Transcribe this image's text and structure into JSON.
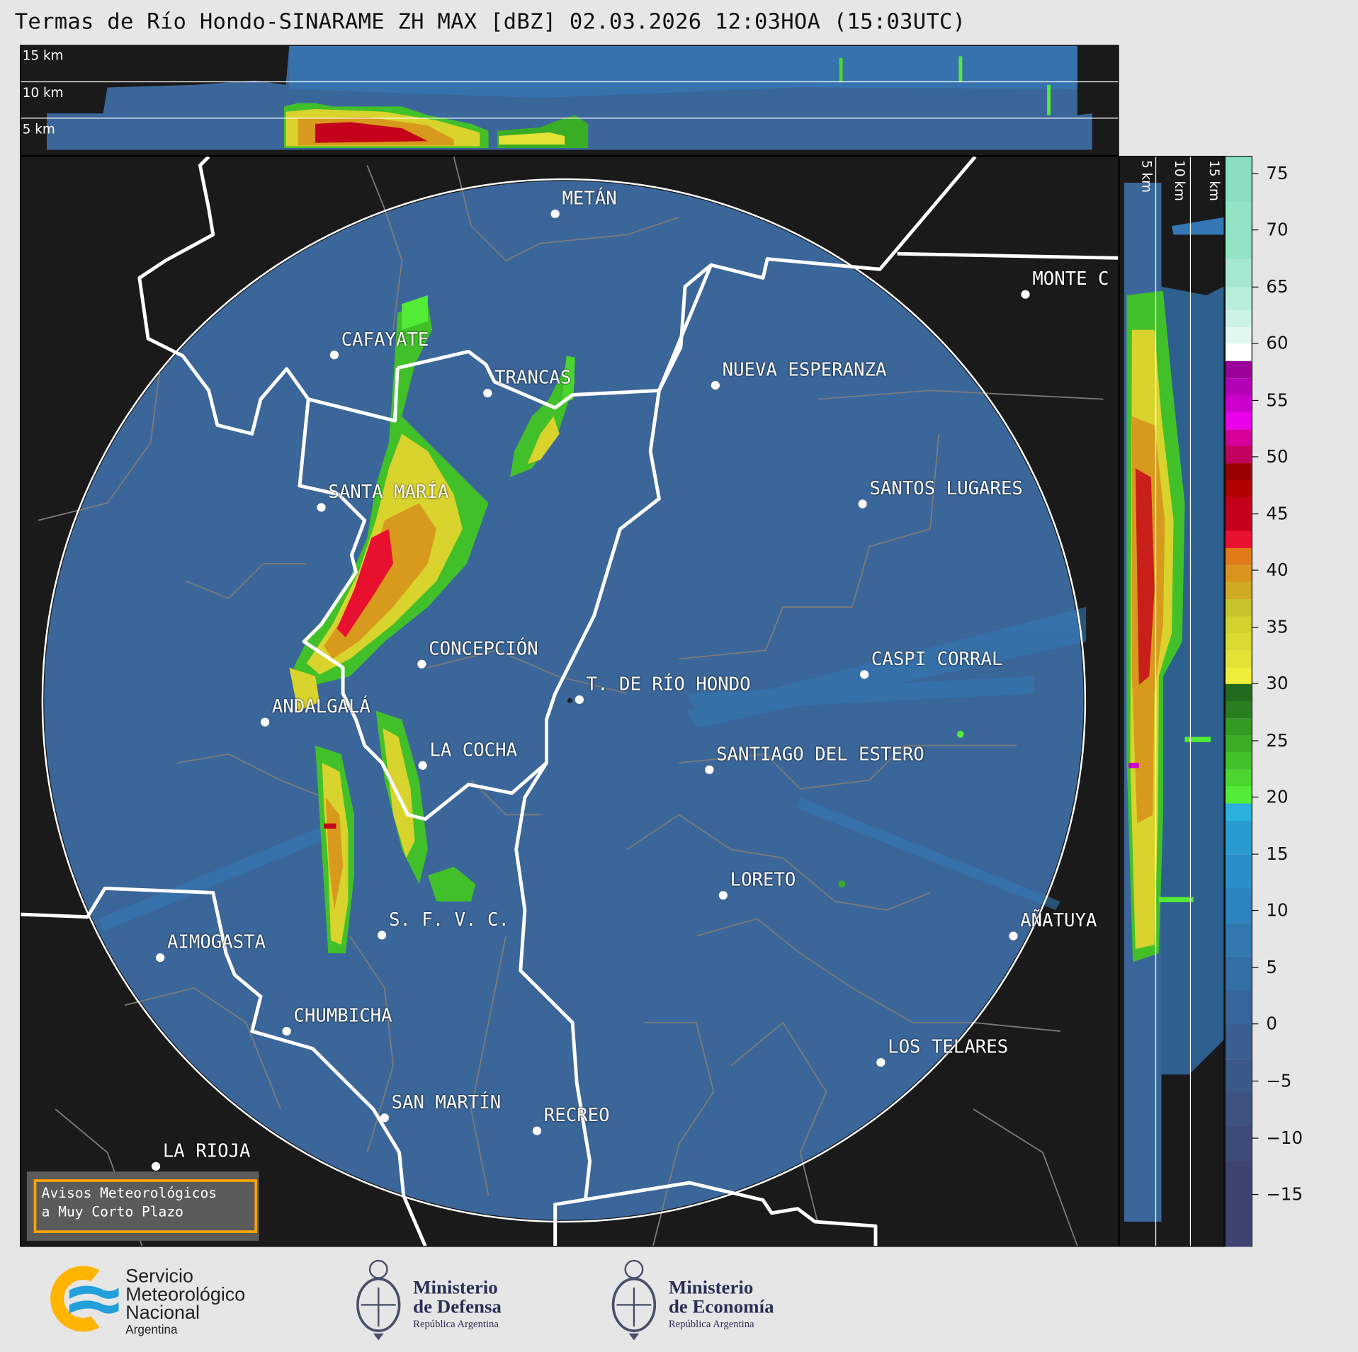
{
  "title": "Termas de Río Hondo-SINARAME ZH MAX [dBZ] 02.03.2026 12:03HOA (15:03UTC)",
  "top_panel": {
    "height_labels": [
      "15 km",
      "10 km",
      "5 km"
    ]
  },
  "side_panel": {
    "height_labels": [
      "5 km",
      "10 km",
      "15 km"
    ]
  },
  "colorbar": {
    "unit": "dBZ",
    "range": [
      -19.5,
      76.5
    ],
    "ticks": [
      75,
      70,
      65,
      60,
      55,
      50,
      45,
      40,
      35,
      30,
      25,
      20,
      15,
      10,
      5,
      0,
      -5,
      -10,
      -15
    ],
    "tick_labels": [
      "75",
      "70",
      "65",
      "60",
      "55",
      "50",
      "45",
      "40",
      "35",
      "30",
      "25",
      "20",
      "15",
      "10",
      "5",
      "0",
      "−5",
      "−10",
      "−15"
    ],
    "bands": [
      [
        72.5,
        76.5,
        "#88dfbf"
      ],
      [
        67.5,
        72.5,
        "#93e3c5"
      ],
      [
        65,
        67.5,
        "#a6e8cf"
      ],
      [
        63,
        65,
        "#b8eedb"
      ],
      [
        61.5,
        63,
        "#cbf2e4"
      ],
      [
        60,
        61.5,
        "#e0f7ef"
      ],
      [
        58.5,
        60,
        "#ffffff"
      ],
      [
        57,
        58.5,
        "#9a009a"
      ],
      [
        55.5,
        57,
        "#b400b4"
      ],
      [
        54,
        55.5,
        "#cc00cc"
      ],
      [
        52.5,
        54,
        "#ea00ea"
      ],
      [
        51,
        52.5,
        "#d40098"
      ],
      [
        49.5,
        51,
        "#c2005e"
      ],
      [
        48,
        49.5,
        "#990000"
      ],
      [
        46.5,
        48,
        "#b00000"
      ],
      [
        43.5,
        46.5,
        "#c4001a"
      ],
      [
        42,
        43.5,
        "#ea1030"
      ],
      [
        40.5,
        42,
        "#e07c18"
      ],
      [
        39,
        40.5,
        "#d8941c"
      ],
      [
        37.5,
        39,
        "#d0aa20"
      ],
      [
        36,
        37.5,
        "#c5c42a"
      ],
      [
        34.5,
        36,
        "#d2d22e"
      ],
      [
        33,
        34.5,
        "#d9da32"
      ],
      [
        31.5,
        33,
        "#e3e336"
      ],
      [
        30,
        31.5,
        "#eeee3a"
      ],
      [
        28.5,
        30,
        "#226b1e"
      ],
      [
        27,
        28.5,
        "#2a7e22"
      ],
      [
        25.5,
        27,
        "#339a22"
      ],
      [
        24,
        25.5,
        "#3aad26"
      ],
      [
        22.5,
        24,
        "#42c02a"
      ],
      [
        21,
        22.5,
        "#4ad62e"
      ],
      [
        19.5,
        21,
        "#52ec36"
      ],
      [
        18,
        19.5,
        "#2ab0dc"
      ],
      [
        15,
        18,
        "#2a9bd0"
      ],
      [
        12,
        15,
        "#2a8fc8"
      ],
      [
        9,
        12,
        "#2c83bd"
      ],
      [
        6,
        9,
        "#3078b0"
      ],
      [
        3,
        6,
        "#336ea4"
      ],
      [
        0,
        3,
        "#36659a"
      ],
      [
        -3,
        0,
        "#395e91"
      ],
      [
        -6,
        -3,
        "#3b5888"
      ],
      [
        -9,
        -6,
        "#3d527f"
      ],
      [
        -12,
        -9,
        "#3e4b78"
      ],
      [
        -19.5,
        -12,
        "#3e4370"
      ]
    ]
  },
  "cities": [
    {
      "name": "METÁN"
    },
    {
      "name": "CAFAYATE"
    },
    {
      "name": "TRANCAS"
    },
    {
      "name": "NUEVA ESPERANZA"
    },
    {
      "name": "MONTE C"
    },
    {
      "name": "SANTA MARÍA"
    },
    {
      "name": "SANTOS LUGARES"
    },
    {
      "name": "CONCEPCIÓN"
    },
    {
      "name": "T. DE RÍO HONDO"
    },
    {
      "name": "CASPI CORRAL"
    },
    {
      "name": "ANDALGALÁ"
    },
    {
      "name": "LA COCHA"
    },
    {
      "name": "SANTIAGO DEL ESTERO"
    },
    {
      "name": "LORETO"
    },
    {
      "name": "S. F. V. C."
    },
    {
      "name": "AÑATUYA"
    },
    {
      "name": "AIMOGASTA"
    },
    {
      "name": "CHUMBICHA"
    },
    {
      "name": "LOS TELARES"
    },
    {
      "name": "SAN MARTÍN"
    },
    {
      "name": "RECREO"
    },
    {
      "name": "LA RIOJA"
    }
  ],
  "avisos": {
    "line1": "Avisos Meteorológicos",
    "line2": "a Muy Corto Plazo",
    "border_color": "#ffa500"
  },
  "logos": {
    "smn": {
      "line1": "Servicio",
      "line2": "Meteorológico",
      "line3": "Nacional",
      "line4": "Argentina"
    },
    "defensa": {
      "line1": "Ministerio",
      "line2": "de Defensa",
      "line3": "República Argentina"
    },
    "economia": {
      "line1": "Ministerio",
      "line2": "de Economía",
      "line3": "República Argentina"
    }
  },
  "colors": {
    "radar_background": "#3b6699",
    "map_background": "#1a1a1a",
    "province_border": "#ffffff",
    "department_border": "#7a7a7a"
  }
}
